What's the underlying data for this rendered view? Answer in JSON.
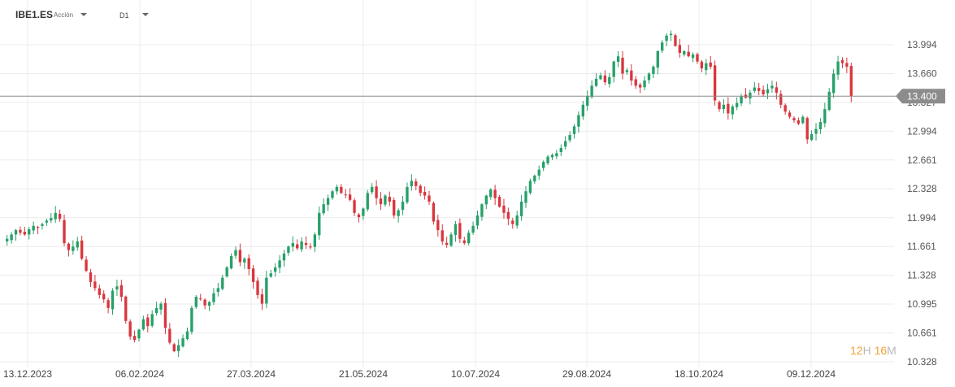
{
  "header": {
    "symbol": "IBE1.ES",
    "asset_type": "Acción",
    "interval": "D1"
  },
  "timer": {
    "hours": "12",
    "hours_unit": "H",
    "minutes": "16",
    "minutes_unit": "M"
  },
  "colors": {
    "up": "#26a069",
    "down": "#d9363e",
    "grid": "#ececec",
    "price_line": "#8a8a8a",
    "badge": "#8c8c8c"
  },
  "chart_data": {
    "type": "candlestick",
    "title": "",
    "xlabel": "",
    "ylabel": "",
    "ylim": [
      10.25,
      14.4
    ],
    "y_ticks": [
      "10.328",
      "10.661",
      "10.995",
      "11.328",
      "11.661",
      "11.994",
      "12.328",
      "12.661",
      "12.994",
      "13.327",
      "13.660",
      "13.994"
    ],
    "x_ticks": [
      "13.12.2023",
      "06.02.2024",
      "27.03.2024",
      "21.05.2024",
      "10.07.2024",
      "29.08.2024",
      "18.10.2024",
      "09.12.2024"
    ],
    "current_price": "13.400",
    "grid": true,
    "closes": [
      11.75,
      11.8,
      11.85,
      11.82,
      11.8,
      11.86,
      11.9,
      11.88,
      11.92,
      11.96,
      11.99,
      12.05,
      11.98,
      11.7,
      11.62,
      11.66,
      11.72,
      11.52,
      11.38,
      11.25,
      11.18,
      11.1,
      11.05,
      10.95,
      11.15,
      11.2,
      11.08,
      10.8,
      10.62,
      10.58,
      10.7,
      10.82,
      10.74,
      10.88,
      10.95,
      11.0,
      10.72,
      10.55,
      10.45,
      10.52,
      10.6,
      10.68,
      10.95,
      11.08,
      11.05,
      10.98,
      11.02,
      11.12,
      11.18,
      11.3,
      11.42,
      11.55,
      11.62,
      11.48,
      11.52,
      11.4,
      11.25,
      11.1,
      11.0,
      11.3,
      11.35,
      11.42,
      11.5,
      11.58,
      11.66,
      11.7,
      11.64,
      11.72,
      11.68,
      11.65,
      11.8,
      12.05,
      12.15,
      12.22,
      12.3,
      12.35,
      12.28,
      12.26,
      12.2,
      12.05,
      12.0,
      12.1,
      12.28,
      12.35,
      12.22,
      12.15,
      12.25,
      12.18,
      12.02,
      12.08,
      12.18,
      12.35,
      12.42,
      12.36,
      12.28,
      12.25,
      12.18,
      11.95,
      11.85,
      11.72,
      11.68,
      11.8,
      11.92,
      11.75,
      11.7,
      11.82,
      11.9,
      12.02,
      12.15,
      12.25,
      12.32,
      12.22,
      12.12,
      12.05,
      11.98,
      11.92,
      12.02,
      12.18,
      12.3,
      12.42,
      12.48,
      12.55,
      12.64,
      12.7,
      12.72,
      12.74,
      12.8,
      12.88,
      12.95,
      13.05,
      13.18,
      13.3,
      13.4,
      13.52,
      13.6,
      13.64,
      13.56,
      13.62,
      13.8,
      13.86,
      13.66,
      13.7,
      13.58,
      13.52,
      13.5,
      13.58,
      13.66,
      13.74,
      13.92,
      14.02,
      14.1,
      14.12,
      13.98,
      13.9,
      13.92,
      13.86,
      13.88,
      13.8,
      13.72,
      13.78,
      13.74,
      13.35,
      13.25,
      13.3,
      13.2,
      13.28,
      13.32,
      13.4,
      13.38,
      13.44,
      13.5,
      13.46,
      13.42,
      13.48,
      13.52,
      13.44,
      13.3,
      13.22,
      13.16,
      13.12,
      13.08,
      13.16,
      12.9,
      12.96,
      13.02,
      13.1,
      13.25,
      13.45,
      13.66,
      13.8,
      13.78,
      13.74,
      13.4
    ]
  }
}
